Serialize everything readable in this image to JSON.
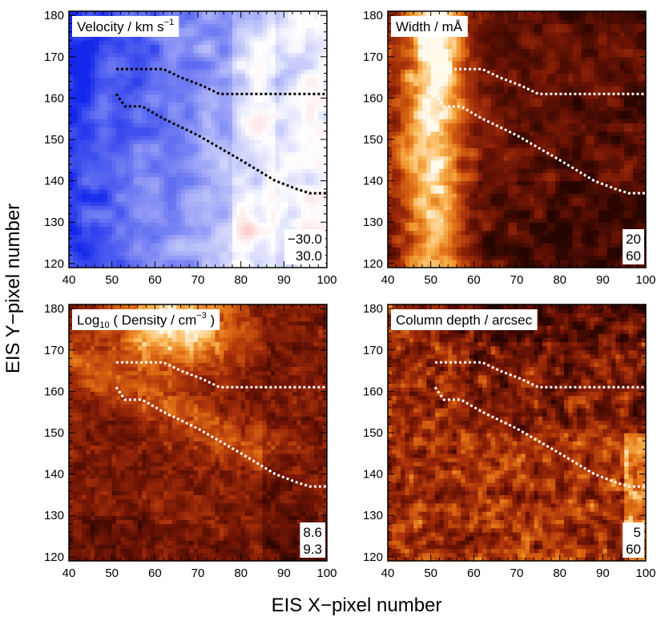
{
  "chart_data": [
    {
      "type": "heatmap",
      "title": "Velocity / km s",
      "title_superscript": "−1",
      "colormap": "blue-white-red",
      "x_axis_label": "EIS X−pixel number",
      "y_axis_label": "EIS Y−pixel number",
      "xlim": [
        40,
        100
      ],
      "ylim": [
        119,
        181
      ],
      "x_ticks": [
        "40",
        "50",
        "60",
        "70",
        "80",
        "90",
        "100"
      ],
      "y_ticks": [
        "120",
        "130",
        "140",
        "150",
        "160",
        "170",
        "180"
      ],
      "range_labels": [
        "−30.0",
        "30.0"
      ],
      "range_min": -30.0,
      "range_max": 30.0
    },
    {
      "type": "heatmap",
      "title": "Width / mÅ",
      "colormap": "red-temperature",
      "xlim": [
        40,
        100
      ],
      "ylim": [
        119,
        181
      ],
      "x_ticks": [
        "40",
        "50",
        "60",
        "70",
        "80",
        "90",
        "100"
      ],
      "y_ticks": [
        "120",
        "130",
        "140",
        "150",
        "160",
        "170",
        "180"
      ],
      "range_labels": [
        "20",
        "60"
      ],
      "range_min": 20,
      "range_max": 60
    },
    {
      "type": "heatmap",
      "title": "Log",
      "title_subscript": "10",
      "title_rest": " ( Density / cm",
      "title_superscript": "−3",
      "title_close": " )",
      "colormap": "red-temperature",
      "xlim": [
        40,
        100
      ],
      "ylim": [
        119,
        181
      ],
      "x_ticks": [
        "40",
        "50",
        "60",
        "70",
        "80",
        "90",
        "100"
      ],
      "y_ticks": [
        "120",
        "130",
        "140",
        "150",
        "160",
        "170",
        "180"
      ],
      "range_labels": [
        "8.6",
        "9.3"
      ],
      "range_min": 8.6,
      "range_max": 9.3
    },
    {
      "type": "heatmap",
      "title": "Column depth / arcsec",
      "colormap": "red-temperature",
      "xlim": [
        40,
        100
      ],
      "ylim": [
        119,
        181
      ],
      "x_ticks": [
        "40",
        "50",
        "60",
        "70",
        "80",
        "90",
        "100"
      ],
      "y_ticks": [
        "120",
        "130",
        "140",
        "150",
        "160",
        "170",
        "180"
      ],
      "range_labels": [
        "5",
        "60"
      ],
      "range_min": 5,
      "range_max": 60
    }
  ],
  "figure": {
    "x_axis_label": "EIS X−pixel number",
    "y_axis_label": "EIS Y−pixel number"
  },
  "overlay_contours": {
    "description_units": "EIS pixel coordinates",
    "upper_boundary": [
      [
        51,
        167
      ],
      [
        62,
        167
      ],
      [
        66,
        165
      ],
      [
        71,
        163
      ],
      [
        75,
        161
      ],
      [
        100,
        161
      ]
    ],
    "lower_boundary": [
      [
        51,
        161
      ],
      [
        53,
        158
      ],
      [
        57,
        158
      ],
      [
        62,
        155
      ],
      [
        70,
        151
      ],
      [
        80,
        145
      ],
      [
        88,
        140
      ],
      [
        93,
        138
      ],
      [
        96,
        137
      ],
      [
        100,
        137
      ]
    ]
  }
}
